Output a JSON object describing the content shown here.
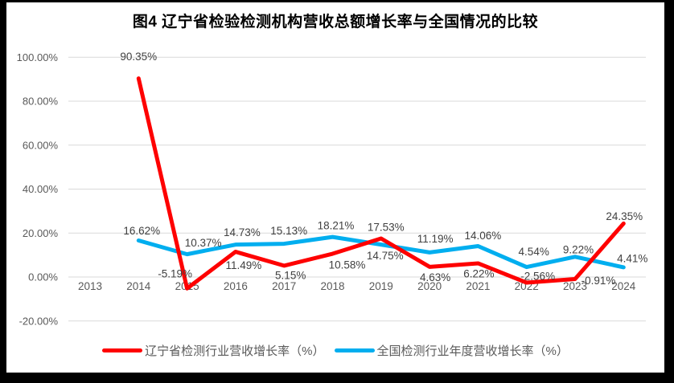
{
  "chart_data": {
    "type": "line",
    "title": "图4 辽宁省检验检测机构营收总额增长率与全国情况的比较",
    "categories": [
      "2013",
      "2014",
      "2015",
      "2016",
      "2017",
      "2018",
      "2019",
      "2020",
      "2021",
      "2022",
      "2023",
      "2024"
    ],
    "series": [
      {
        "key": "liaoning",
        "name": "辽宁省检测行业营收增长率（%）",
        "color": "#fe0000",
        "values": [
          null,
          90.35,
          -5.19,
          11.49,
          5.15,
          10.58,
          17.53,
          4.63,
          6.22,
          -2.56,
          -0.91,
          24.35
        ],
        "label_offsets": [
          null,
          [
            0,
            -27
          ],
          [
            -15,
            -18
          ],
          [
            10,
            17
          ],
          [
            8,
            12
          ],
          [
            18,
            14
          ],
          [
            6,
            -14
          ],
          [
            7,
            13
          ],
          [
            1,
            13
          ],
          [
            14,
            -8
          ],
          [
            29,
            2
          ],
          [
            1,
            -9
          ]
        ]
      },
      {
        "key": "national",
        "name": "全国检测行业年度营收增长率（%）",
        "color": "#00aeef",
        "values": [
          null,
          16.62,
          10.37,
          14.73,
          15.13,
          18.21,
          14.75,
          11.19,
          14.06,
          4.54,
          9.22,
          4.41
        ],
        "label_offsets": [
          null,
          [
            4,
            -12
          ],
          [
            20,
            -14
          ],
          [
            8,
            -15
          ],
          [
            6,
            -16
          ],
          [
            4,
            -14
          ],
          [
            5,
            14
          ],
          [
            7,
            -17
          ],
          [
            6,
            -13
          ],
          [
            9,
            -19
          ],
          [
            4,
            -9
          ],
          [
            11,
            -11
          ]
        ]
      }
    ],
    "y_ticks": [
      {
        "label": "100.00%",
        "value": 100
      },
      {
        "label": "80.00%",
        "value": 80
      },
      {
        "label": "60.00%",
        "value": 60
      },
      {
        "label": "40.00%",
        "value": 40
      },
      {
        "label": "20.00%",
        "value": 20
      },
      {
        "label": "0.00%",
        "value": 0
      },
      {
        "label": "-20.00%",
        "value": -20
      }
    ],
    "ylim": [
      -20,
      100
    ],
    "grid": true,
    "legend_position": "bottom",
    "value_label_format": "0.00%"
  },
  "style": {
    "grid_color": "#d9d9d9",
    "axis_text_color": "#595959",
    "data_label_color": "#404040",
    "chart_background": "#ffffff",
    "frame_color": "#000000"
  }
}
